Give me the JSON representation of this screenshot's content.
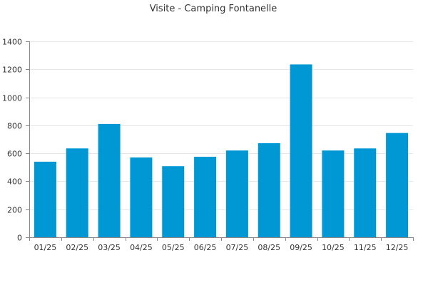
{
  "chart_data": {
    "type": "bar",
    "title": "Visite - Camping Fontanelle",
    "xlabel": "",
    "ylabel": "",
    "categories": [
      "01/25",
      "02/25",
      "03/25",
      "04/25",
      "05/25",
      "06/25",
      "07/25",
      "08/25",
      "09/25",
      "10/25",
      "11/25",
      "12/25"
    ],
    "values": [
      540,
      635,
      810,
      570,
      508,
      575,
      620,
      672,
      1235,
      620,
      635,
      745
    ],
    "ylim": [
      0,
      1400
    ],
    "yticks": [
      0,
      200,
      400,
      600,
      800,
      1000,
      1200,
      1400
    ],
    "grid": true,
    "legend": "none",
    "colors": {
      "bar": "#0098d4",
      "grid": "#e6e6e6",
      "axis": "#888888"
    }
  }
}
